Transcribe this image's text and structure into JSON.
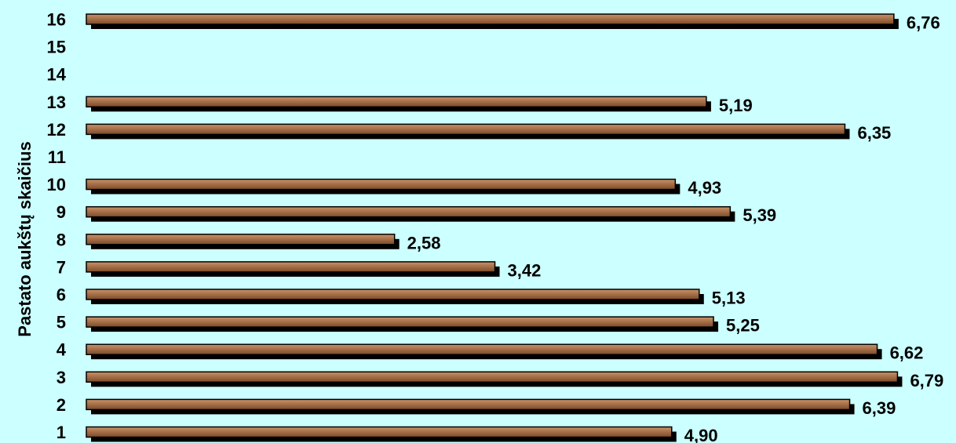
{
  "chart_data": {
    "type": "bar",
    "orientation": "horizontal",
    "categories": [
      "1",
      "2",
      "3",
      "4",
      "5",
      "6",
      "7",
      "8",
      "9",
      "10",
      "11",
      "12",
      "13",
      "14",
      "15",
      "16"
    ],
    "values": [
      4.9,
      6.39,
      6.79,
      6.62,
      5.25,
      5.13,
      3.42,
      2.58,
      5.39,
      4.93,
      null,
      6.35,
      5.19,
      null,
      null,
      6.76
    ],
    "data_labels": [
      "4,90",
      "6,39",
      "6,79",
      "6,62",
      "5,25",
      "5,13",
      "3,42",
      "2,58",
      "5,39",
      "4,93",
      "",
      "6,35",
      "5,19",
      "",
      "",
      "6,76"
    ],
    "title": "",
    "xlabel": "",
    "ylabel": "Pastato aukštų skaičius",
    "xlim": [
      0,
      7
    ],
    "grid": false,
    "legend": "none",
    "colors": {
      "background": "#ccffff",
      "bar_fill": "#a0683c",
      "bar_shadow": "#000000",
      "text": "#000000"
    }
  }
}
